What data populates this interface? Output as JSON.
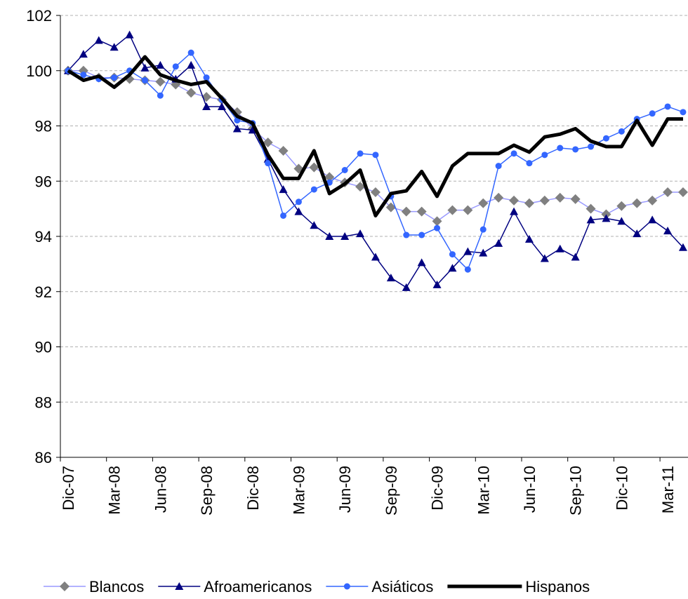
{
  "chart_data": {
    "type": "line",
    "categories": [
      "Dic-07",
      null,
      null,
      "Mar-08",
      null,
      null,
      "Jun-08",
      null,
      null,
      "Sep-08",
      null,
      null,
      "Dic-08",
      null,
      null,
      "Mar-09",
      null,
      null,
      "Jun-09",
      null,
      null,
      "Sep-09",
      null,
      null,
      "Dic-09",
      null,
      null,
      "Mar-10",
      null,
      null,
      "Jun-10",
      null,
      null,
      "Sep-10",
      null,
      null,
      "Dic-10",
      null,
      null,
      "Mar-11",
      null
    ],
    "series": [
      {
        "name": "Blancos",
        "color": "#9999ff",
        "marker": "diamond",
        "marker_color": "#808080",
        "width": 1.5,
        "values": [
          100.0,
          100.0,
          99.75,
          99.75,
          99.7,
          99.65,
          99.6,
          99.5,
          99.2,
          99.05,
          98.95,
          98.5,
          97.9,
          97.4,
          97.1,
          96.45,
          96.5,
          96.15,
          95.95,
          95.8,
          95.6,
          95.05,
          94.9,
          94.9,
          94.55,
          94.95,
          94.95,
          95.2,
          95.4,
          95.3,
          95.2,
          95.3,
          95.4,
          95.35,
          95.0,
          94.8,
          95.1,
          95.2,
          95.3,
          95.6,
          95.6
        ]
      },
      {
        "name": "Afroamericanos",
        "color": "#000080",
        "marker": "triangle",
        "marker_color": "#000080",
        "width": 1.5,
        "values": [
          100.0,
          100.6,
          101.1,
          100.85,
          101.3,
          100.1,
          100.2,
          99.7,
          100.2,
          98.7,
          98.7,
          97.9,
          97.85,
          96.8,
          95.7,
          94.9,
          94.4,
          94.0,
          94.0,
          94.1,
          93.25,
          92.5,
          92.15,
          93.05,
          92.25,
          92.85,
          93.45,
          93.4,
          93.75,
          94.9,
          93.9,
          93.2,
          93.55,
          93.25,
          94.6,
          94.65,
          94.55,
          94.1,
          94.6,
          94.2,
          93.6
        ]
      },
      {
        "name": "Asiáticos",
        "color": "#3366ff",
        "marker": "circle",
        "marker_color": "#3366ff",
        "width": 1.5,
        "values": [
          100.0,
          99.85,
          99.7,
          99.75,
          100.0,
          99.65,
          99.1,
          100.15,
          100.65,
          99.75,
          98.95,
          98.2,
          98.1,
          96.65,
          94.75,
          95.25,
          95.7,
          95.95,
          96.4,
          97.0,
          96.95,
          95.45,
          94.05,
          94.05,
          94.3,
          93.35,
          92.8,
          94.25,
          96.55,
          97.0,
          96.65,
          96.95,
          97.2,
          97.15,
          97.25,
          97.55,
          97.8,
          98.25,
          98.45,
          98.7,
          98.5
        ]
      },
      {
        "name": "Hispanos",
        "color": "#000000",
        "marker": "none",
        "marker_color": "#000000",
        "width": 5,
        "values": [
          100.0,
          99.65,
          99.8,
          99.4,
          99.85,
          100.5,
          99.85,
          99.65,
          99.5,
          99.6,
          99.0,
          98.35,
          98.1,
          96.95,
          96.1,
          96.1,
          97.1,
          95.55,
          95.9,
          96.4,
          94.75,
          95.55,
          95.65,
          96.35,
          95.45,
          96.55,
          97.0,
          97.0,
          97.0,
          97.3,
          97.05,
          97.6,
          97.7,
          97.9,
          97.45,
          97.25,
          97.25,
          98.2,
          97.3,
          98.25,
          98.25
        ]
      }
    ],
    "ylim": [
      86,
      102
    ],
    "yticks": [
      86,
      88,
      90,
      92,
      94,
      96,
      98,
      100,
      102
    ],
    "grid": true,
    "legend": "bottom"
  }
}
